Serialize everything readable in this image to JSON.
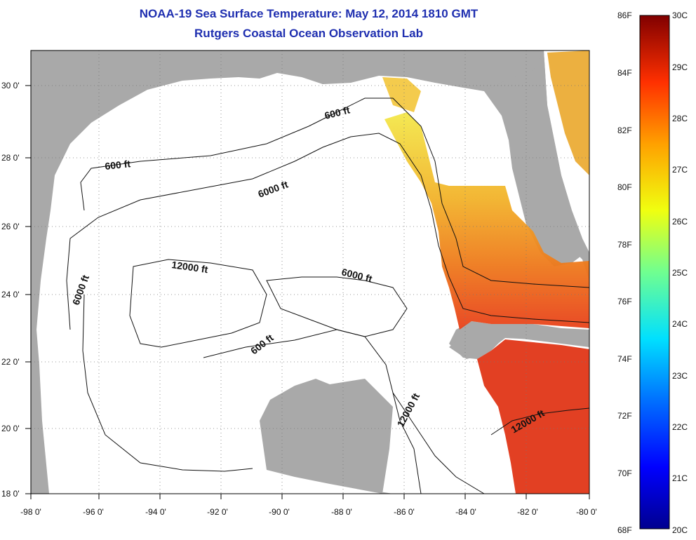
{
  "title": "NOAA-19 Sea Surface Temperature:  May 12, 2014 1810 GMT",
  "subtitle": "Rutgers Coastal Ocean Observation Lab",
  "x_ticks": [
    "-98 0'",
    "-96 0'",
    "-94 0'",
    "-92 0'",
    "-90 0'",
    "-88 0'",
    "-86 0'",
    "-84 0'",
    "-82 0'",
    "-80 0'"
  ],
  "y_ticks": [
    "30 0'",
    "28 0'",
    "26 0'",
    "24 0'",
    "22 0'",
    "20 0'",
    "18 0'"
  ],
  "contours": [
    {
      "label": "600 ft"
    },
    {
      "label": "600 ft"
    },
    {
      "label": "6000 ft"
    },
    {
      "label": "12000 ft"
    },
    {
      "label": "6000 ft"
    },
    {
      "label": "6000 ft"
    },
    {
      "label": "600 ft"
    },
    {
      "label": "12000 ft"
    },
    {
      "label": "12000 ft"
    }
  ],
  "colorbar": {
    "f_labels": [
      "86F",
      "84F",
      "82F",
      "80F",
      "78F",
      "76F",
      "74F",
      "72F",
      "70F",
      "68F"
    ],
    "c_labels": [
      "30C",
      "29C",
      "28C",
      "27C",
      "26C",
      "25C",
      "24C",
      "23C",
      "22C",
      "21C",
      "20C"
    ],
    "range_c": [
      20,
      30
    ]
  },
  "colors": {
    "land": "#a9a9a9",
    "water": "#ffffff",
    "title": "#1f2fb0",
    "sst_warm": "#e03010",
    "sst_mid": "#f0a020",
    "sst_cool": "#f2e040"
  }
}
